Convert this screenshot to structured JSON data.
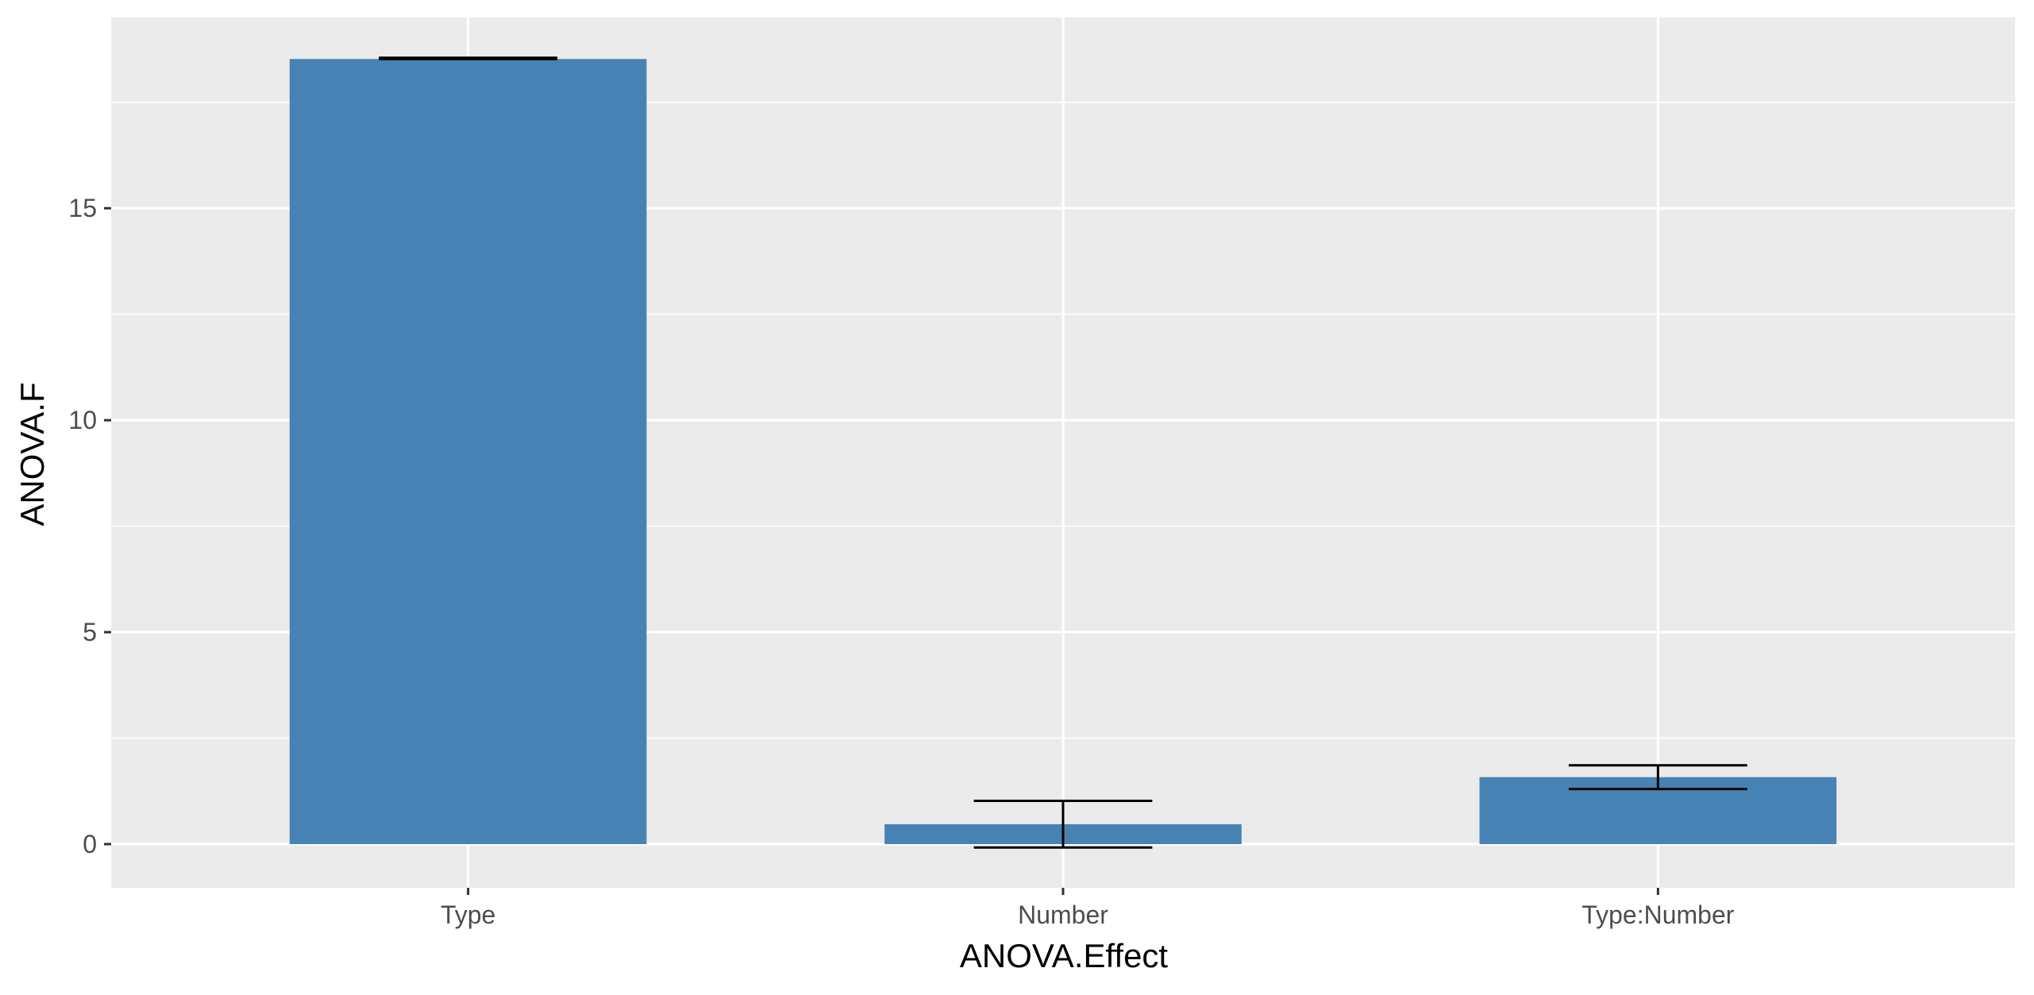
{
  "chart_data": {
    "type": "bar",
    "categories": [
      "Type",
      "Number",
      "Type:Number"
    ],
    "values": [
      18.52,
      0.47,
      1.58
    ],
    "error_bars": [
      {
        "low": 18.52,
        "high": 18.55
      },
      {
        "low": -0.08,
        "high": 1.02
      },
      {
        "low": 1.3,
        "high": 1.86
      }
    ],
    "xlabel": "ANOVA.Effect",
    "ylabel": "ANOVA.F",
    "ylim": [
      -1.03,
      19.5
    ],
    "yticks": [
      0,
      5,
      10,
      15
    ],
    "grid": true,
    "legend": "none",
    "colors": {
      "bar": "#4682b4",
      "panel": "#ebebeb",
      "grid": "#ffffff",
      "errorbar": "#000000",
      "tick_label": "#4d4d4d",
      "axis_title": "#000000"
    }
  }
}
